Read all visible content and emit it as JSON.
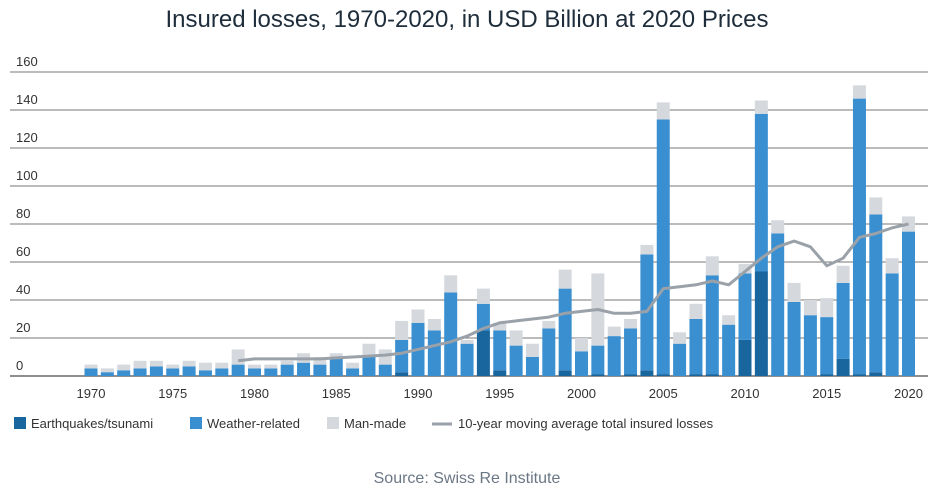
{
  "title": "Insured losses, 1970-2020, in USD Billion at 2020 Prices",
  "source": "Source: Swiss Re Institute",
  "colors": {
    "earthquake": "#19669f",
    "weather": "#3a8fd0",
    "manmade": "#d5d9de",
    "moving_avg": "#9aa1a9",
    "grid": "#4a4a4a",
    "text": "#333333"
  },
  "chart_data": {
    "type": "bar",
    "stacked": true,
    "title": "Insured losses, 1970-2020, in USD Billion at 2020 Prices",
    "xlabel": "",
    "ylabel": "",
    "ylim": [
      0,
      160
    ],
    "yticks": [
      0,
      20,
      40,
      60,
      80,
      100,
      120,
      140,
      160
    ],
    "xticks": [
      1970,
      1975,
      1980,
      1985,
      1990,
      1995,
      2000,
      2005,
      2010,
      2015,
      2020
    ],
    "grid": true,
    "legend_position": "bottom",
    "categories": [
      1970,
      1971,
      1972,
      1973,
      1974,
      1975,
      1976,
      1977,
      1978,
      1979,
      1980,
      1981,
      1982,
      1983,
      1984,
      1985,
      1986,
      1987,
      1988,
      1989,
      1990,
      1991,
      1992,
      1993,
      1994,
      1995,
      1996,
      1997,
      1998,
      1999,
      2000,
      2001,
      2002,
      2003,
      2004,
      2005,
      2006,
      2007,
      2008,
      2009,
      2010,
      2011,
      2012,
      2013,
      2014,
      2015,
      2016,
      2017,
      2018,
      2019,
      2020
    ],
    "series": [
      {
        "name": "Earthquakes/tsunami",
        "values": [
          0,
          0,
          0,
          0,
          0,
          0,
          0,
          0,
          0,
          0,
          0,
          0,
          0,
          0,
          0,
          0,
          0,
          0,
          0,
          2,
          0,
          0,
          0,
          0,
          24,
          3,
          0,
          0,
          0,
          3,
          0,
          1,
          0,
          1,
          3,
          1,
          0,
          1,
          1,
          0,
          19,
          55,
          0,
          0,
          0,
          1,
          9,
          1,
          2,
          0,
          0
        ]
      },
      {
        "name": "Weather-related",
        "values": [
          4,
          2,
          3,
          4,
          5,
          4,
          5,
          3,
          4,
          6,
          4,
          4,
          6,
          7,
          6,
          9,
          4,
          11,
          6,
          17,
          28,
          24,
          44,
          17,
          14,
          21,
          16,
          10,
          25,
          43,
          13,
          15,
          21,
          24,
          61,
          134,
          17,
          29,
          52,
          27,
          35,
          83,
          75,
          39,
          32,
          30,
          40,
          145,
          83,
          54,
          76
        ]
      },
      {
        "name": "Man-made",
        "values": [
          2,
          2,
          3,
          4,
          3,
          2,
          3,
          4,
          3,
          8,
          2,
          2,
          2,
          5,
          4,
          3,
          3,
          6,
          8,
          10,
          7,
          6,
          9,
          2,
          8,
          4,
          8,
          7,
          4,
          10,
          7,
          38,
          5,
          5,
          5,
          9,
          6,
          8,
          10,
          5,
          5,
          7,
          7,
          10,
          8,
          10,
          9,
          7,
          9,
          8,
          8
        ]
      },
      {
        "name": "10-year moving average total insured losses",
        "type": "line",
        "x": [
          1979,
          1980,
          1981,
          1982,
          1983,
          1984,
          1985,
          1986,
          1987,
          1988,
          1989,
          1990,
          1991,
          1992,
          1993,
          1994,
          1995,
          1996,
          1997,
          1998,
          1999,
          2000,
          2001,
          2002,
          2003,
          2004,
          2005,
          2006,
          2007,
          2008,
          2009,
          2010,
          2011,
          2012,
          2013,
          2014,
          2015,
          2016,
          2017,
          2018,
          2019,
          2020
        ],
        "values": [
          8,
          9,
          9,
          9,
          9,
          9,
          9.5,
          10,
          10.5,
          11,
          12,
          14,
          16,
          18,
          21,
          25,
          28,
          29,
          30,
          31,
          33,
          34,
          35,
          33,
          33,
          34,
          46,
          47,
          48,
          50,
          48,
          55,
          62,
          68,
          71,
          68,
          58,
          62,
          73,
          75,
          78,
          80
        ]
      }
    ]
  }
}
